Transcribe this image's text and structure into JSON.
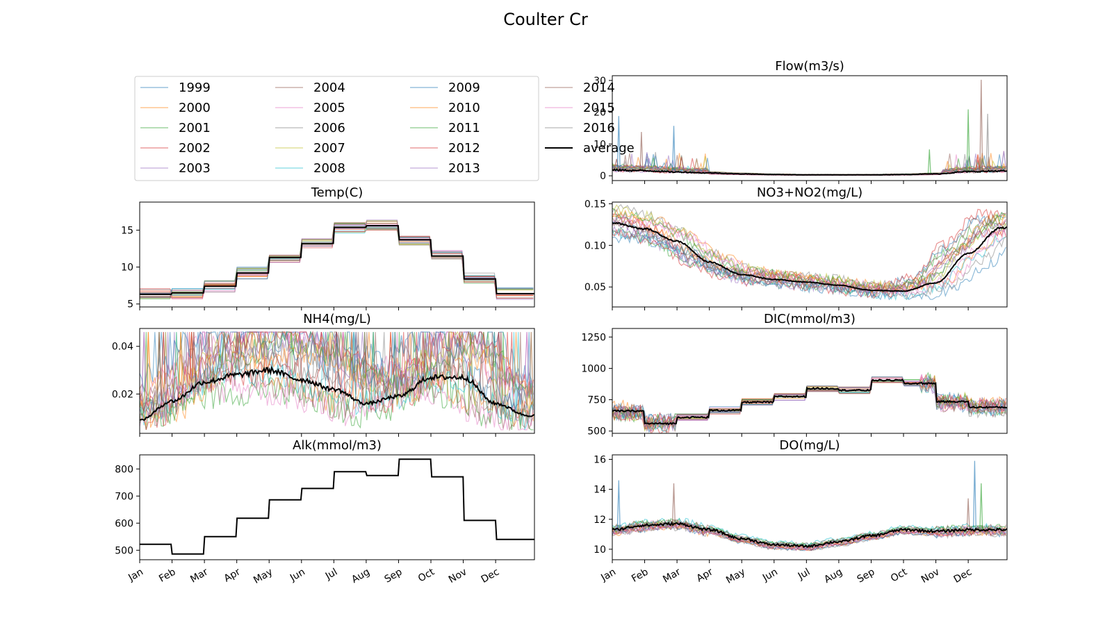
{
  "figure": {
    "suptitle": "Coulter Cr"
  },
  "months": [
    "Jan",
    "Feb",
    "Mar",
    "Apr",
    "May",
    "Jun",
    "Jul",
    "Aug",
    "Sep",
    "Oct",
    "Nov",
    "Dec"
  ],
  "legend": {
    "placement": "top-left",
    "entries": [
      "1999",
      "2000",
      "2001",
      "2002",
      "2003",
      "2004",
      "2005",
      "2006",
      "2007",
      "2008",
      "2009",
      "2010",
      "2011",
      "2012",
      "2013",
      "2014",
      "2015",
      "2016",
      "average"
    ]
  },
  "year_colors": [
    "#1f77b4",
    "#ff7f0e",
    "#2ca02c",
    "#d62728",
    "#9467bd",
    "#8c564b",
    "#e377c2",
    "#7f7f7f",
    "#bcbd22",
    "#17becf",
    "#1f77b4",
    "#ff7f0e",
    "#2ca02c",
    "#d62728",
    "#9467bd",
    "#8c564b",
    "#e377c2",
    "#7f7f7f"
  ],
  "average_color": "#000000",
  "chart_data": [
    {
      "id": "temp",
      "type": "line",
      "title": "Temp(C)",
      "ylim": [
        4.6,
        18.8
      ],
      "yticks": [
        5,
        10,
        15
      ],
      "shape": "step",
      "average": [
        6.3,
        6.5,
        7.4,
        9.2,
        11.3,
        13.2,
        15.4,
        15.6,
        13.7,
        11.5,
        8.4,
        6.4
      ],
      "spread": 0.8
    },
    {
      "id": "nh4",
      "type": "line",
      "title": "NH4(mg/L)",
      "ylim": [
        0.0035,
        0.0475
      ],
      "yticks": [
        0.02,
        0.04
      ],
      "ytick_labels": [
        "0.02",
        "0.04"
      ],
      "shape": "smooth",
      "average": [
        0.009,
        0.017,
        0.025,
        0.028,
        0.03,
        0.026,
        0.022,
        0.016,
        0.019,
        0.027,
        0.027,
        0.016,
        0.011
      ],
      "clip": [
        0.005,
        0.046
      ]
    },
    {
      "id": "alk",
      "type": "line",
      "title": "Alk(mmol/m3)",
      "ylim": [
        465,
        852
      ],
      "yticks": [
        500,
        600,
        700,
        800
      ],
      "shape": "step",
      "average": [
        522,
        486,
        550,
        618,
        686,
        728,
        790,
        776,
        836,
        771,
        610,
        540
      ],
      "spread": 0
    },
    {
      "id": "flow",
      "type": "line",
      "title": "Flow(m3/s)",
      "ylim": [
        -1.5,
        31.5
      ],
      "yticks": [
        0,
        10,
        20,
        30
      ],
      "shape": "smooth",
      "average": [
        1.8,
        1.6,
        1.2,
        0.9,
        0.6,
        0.4,
        0.3,
        0.3,
        0.3,
        0.4,
        0.6,
        1.3,
        1.5
      ],
      "peaks": [
        [
          0.2,
          18.8
        ],
        [
          0.9,
          13.8
        ],
        [
          1.9,
          15.7
        ],
        [
          11.4,
          30.2
        ],
        [
          11.0,
          20.9
        ],
        [
          11.6,
          19.5
        ],
        [
          9.8,
          8.3
        ]
      ]
    },
    {
      "id": "no3",
      "type": "line",
      "title": "NO3+NO2(mg/L)",
      "ylim": [
        0.026,
        0.152
      ],
      "yticks": [
        0.05,
        0.1,
        0.15
      ],
      "ytick_labels": [
        "0.05",
        "0.10",
        "0.15"
      ],
      "shape": "smooth",
      "average": [
        0.127,
        0.12,
        0.105,
        0.08,
        0.065,
        0.059,
        0.056,
        0.052,
        0.046,
        0.045,
        0.055,
        0.09,
        0.121
      ],
      "clip": [
        0.035,
        0.15
      ]
    },
    {
      "id": "dic",
      "type": "line",
      "title": "DIC(mmol/m3)",
      "ylim": [
        482,
        1318
      ],
      "yticks": [
        500,
        750,
        1000,
        1250
      ],
      "shape": "step",
      "average": [
        660,
        560,
        610,
        665,
        730,
        775,
        840,
        825,
        905,
        880,
        735,
        690
      ],
      "spread": 30
    },
    {
      "id": "do",
      "type": "line",
      "title": "DO(mg/L)",
      "ylim": [
        9.3,
        16.3
      ],
      "yticks": [
        10,
        12,
        14,
        16
      ],
      "shape": "smooth",
      "average": [
        11.3,
        11.6,
        11.7,
        11.3,
        10.7,
        10.3,
        10.2,
        10.5,
        10.9,
        11.3,
        11.2,
        11.3,
        11.3
      ],
      "peaks": [
        [
          0.2,
          14.6
        ],
        [
          1.9,
          14.4
        ],
        [
          11.2,
          15.9
        ],
        [
          11.0,
          13.4
        ],
        [
          11.4,
          14.4
        ]
      ]
    }
  ]
}
